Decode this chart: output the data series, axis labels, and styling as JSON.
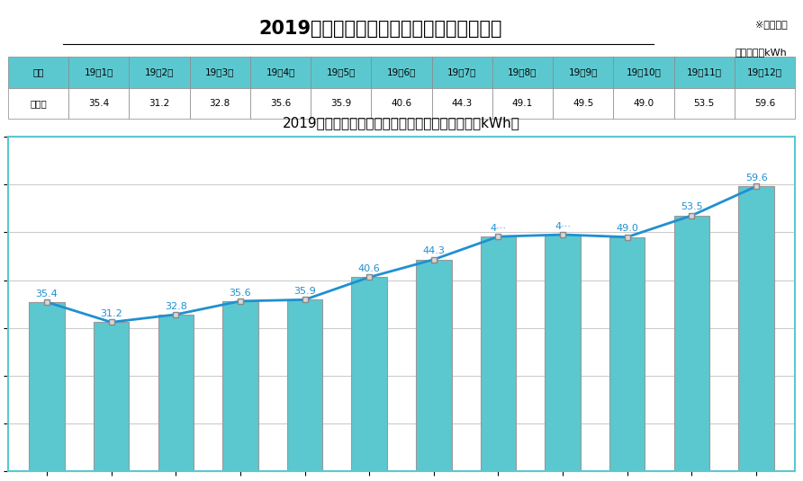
{
  "title_bold": "2019",
  "title_rest": "年各月公共充电基础设施充电电量情况",
  "note_top": "※不含国网",
  "unit_top": "单位：千万kWh",
  "table_header": [
    "月份",
    "19年1月",
    "19年2月",
    "19年3月",
    "19年4月",
    "19年5月",
    "19年6月",
    "19年7月",
    "19年8月",
    "19年9月",
    "19年10月",
    "19年11月",
    "19年12月"
  ],
  "table_row_label": "保有量",
  "table_values": [
    35.4,
    31.2,
    32.8,
    35.6,
    35.9,
    40.6,
    44.3,
    49.1,
    49.5,
    49.0,
    53.5,
    59.6
  ],
  "chart_title": "2019年各月公共类充电设施充电电量（单位：千万kWh）",
  "months": [
    "19年1月",
    "19年2月",
    "19年3月",
    "19年4月",
    "19年5月",
    "19年6月",
    "19年7月",
    "19年8月",
    "19年9月",
    "19年10月",
    "19年11月",
    "19年12月"
  ],
  "values": [
    35.4,
    31.2,
    32.8,
    35.6,
    35.9,
    40.6,
    44.3,
    49.1,
    49.5,
    49.0,
    53.5,
    59.6
  ],
  "bar_color": "#5BC8D0",
  "bar_edge_color": "#999999",
  "line_color": "#2090D0",
  "marker_face_color": "#D8D8D8",
  "marker_edge_color": "#888888",
  "ylim": [
    0,
    70
  ],
  "yticks": [
    0.0,
    10.0,
    20.0,
    30.0,
    40.0,
    50.0,
    60.0,
    70.0
  ],
  "table_header_bg": "#5BC8D0",
  "table_cell_bg": "#FFFFFF",
  "table_border_color": "#888888",
  "chart_border_color": "#5BC8D0",
  "grid_color": "#CCCCCC",
  "label_color": "#2090D0",
  "truncated_indices": [
    7,
    8
  ],
  "truncated_labels": [
    "4···",
    "4…"
  ],
  "bg_color": "#FFFFFF",
  "outer_bg": "#FFFFFF"
}
